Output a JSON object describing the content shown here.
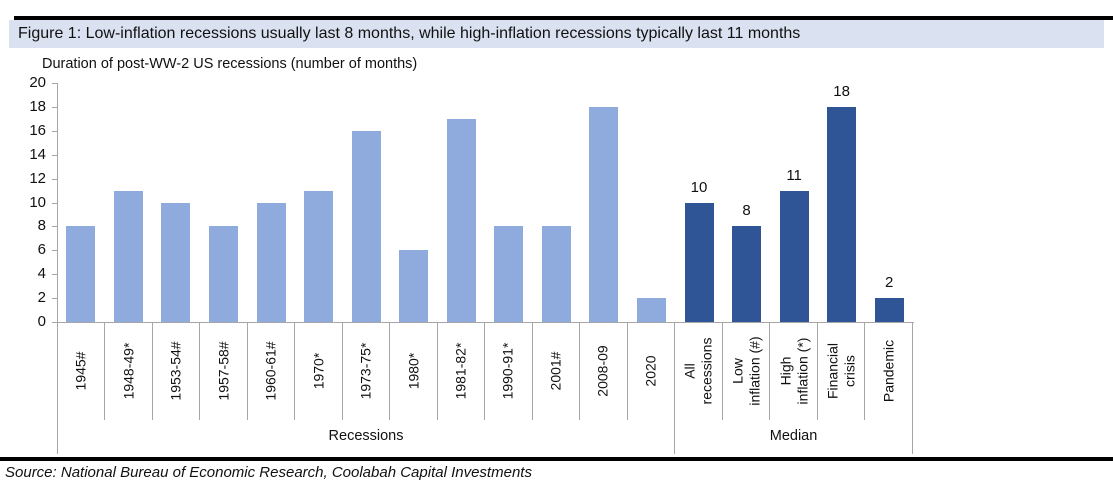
{
  "figure": {
    "title": "Figure 1: Low-inflation recessions usually last 8 months, while high-inflation recessions typically last 11 months"
  },
  "source": {
    "text": "Source: National Bureau of Economic Research, Coolabah Capital Investments"
  },
  "colors": {
    "title_bg": "#dae2f1",
    "rule": "#000000",
    "axis": "#a6a6a6",
    "recession_bar": "#8faadc",
    "median_bar": "#2f5597",
    "text": "#111111"
  },
  "chart_data": {
    "type": "bar",
    "title": "Duration of post-WW-2 US recessions (number of months)",
    "xlabel": "",
    "ylabel": "",
    "ylim": [
      0,
      20
    ],
    "ytick_step": 2,
    "grid": false,
    "legend": false,
    "groups": [
      {
        "label": "Recessions",
        "color": "#8faadc",
        "show_value_labels": false,
        "bars": [
          {
            "label": "1945#",
            "value": 8
          },
          {
            "label": "1948-49*",
            "value": 11
          },
          {
            "label": "1953-54#",
            "value": 10
          },
          {
            "label": "1957-58#",
            "value": 8
          },
          {
            "label": "1960-61#",
            "value": 10
          },
          {
            "label": "1970*",
            "value": 11
          },
          {
            "label": "1973-75*",
            "value": 16
          },
          {
            "label": "1980*",
            "value": 6
          },
          {
            "label": "1981-82*",
            "value": 17
          },
          {
            "label": "1990-91*",
            "value": 8
          },
          {
            "label": "2001#",
            "value": 8
          },
          {
            "label": "2008-09",
            "value": 18
          },
          {
            "label": "2020",
            "value": 2
          }
        ]
      },
      {
        "label": "Median",
        "color": "#2f5597",
        "show_value_labels": true,
        "bars": [
          {
            "label": "All recessions",
            "label_lines": [
              "All",
              "recessions"
            ],
            "value": 10
          },
          {
            "label": "Low inflation (#)",
            "label_lines": [
              "Low",
              "inflation (#)"
            ],
            "value": 8
          },
          {
            "label": "High inflation (*)",
            "label_lines": [
              "High",
              "inflation (*)"
            ],
            "value": 11
          },
          {
            "label": "Financial crisis",
            "label_lines": [
              "Financial",
              "crisis"
            ],
            "value": 18
          },
          {
            "label": "Pandemic",
            "label_lines": [
              "Pandemic"
            ],
            "value": 2
          }
        ]
      }
    ]
  }
}
